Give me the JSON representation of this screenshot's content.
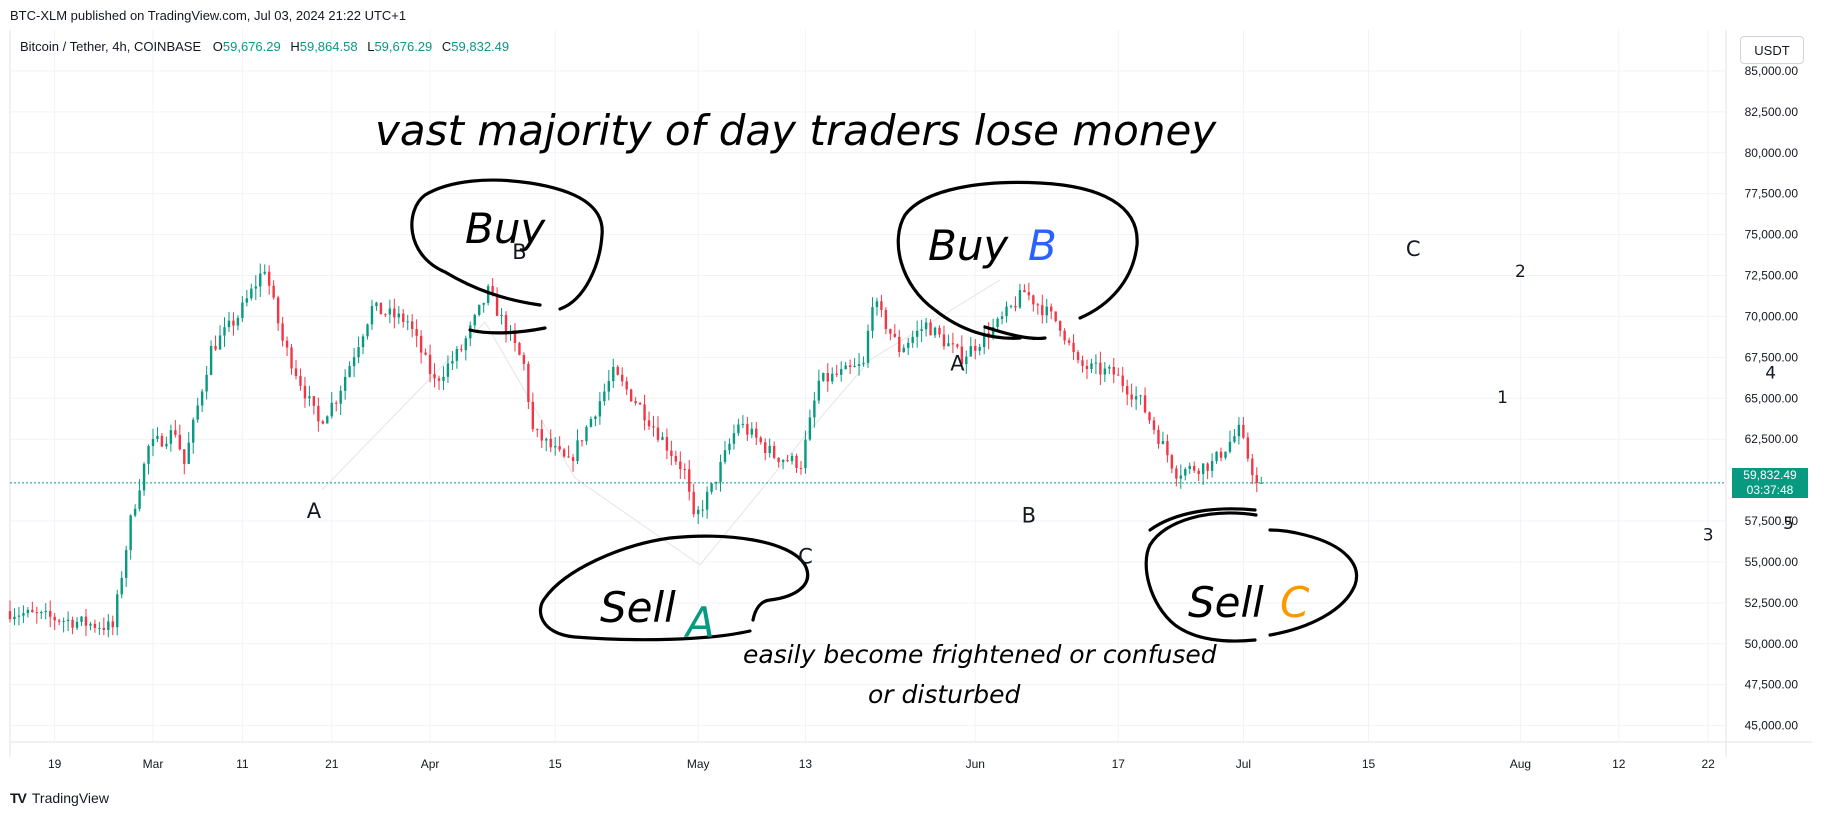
{
  "header": {
    "published": "BTC-XLM published on TradingView.com, Jul 03, 2024 21:22 UTC+1"
  },
  "legend": {
    "symbol": "Bitcoin / Tether, 4h, COINBASE",
    "o_label": "O",
    "o_value": "59,676.29",
    "h_label": "H",
    "h_value": "59,864.58",
    "l_label": "L",
    "l_value": "59,676.29",
    "c_label": "C",
    "c_value": "59,832.49"
  },
  "currency_button": "USDT",
  "price_tag": {
    "price": "59,832.49",
    "countdown": "03:37:48"
  },
  "footer": {
    "brand": "TradingView",
    "brand_mark": "TV"
  },
  "colors": {
    "up": "#089981",
    "down": "#f23645",
    "grid": "#f0f3fa",
    "annotation_a": "#089981",
    "annotation_b": "#2962ff",
    "annotation_c": "#ff9800"
  },
  "annotations": {
    "headline": "vast majority of day traders lose money",
    "subnote_line1": "easily become frightened or confused",
    "subnote_line2": "or disturbed",
    "buy1": "Buy",
    "buy2": "Buy",
    "buy2_tag": "B",
    "sell1": "Sell",
    "sell1_tag": "A",
    "sell2": "Sell",
    "sell2_tag": "C",
    "wave_labels": [
      {
        "id": "a1",
        "text": "A",
        "day": 34,
        "price": 57700
      },
      {
        "id": "b1",
        "text": "B",
        "day": 57,
        "price": 73500
      },
      {
        "id": "a2",
        "text": "A",
        "day": 106,
        "price": 66700
      },
      {
        "id": "b2",
        "text": "B",
        "day": 114,
        "price": 57400
      },
      {
        "id": "c1",
        "text": "C",
        "day": 89,
        "price": 54900
      },
      {
        "id": "c2",
        "text": "C",
        "day": 157,
        "price": 73700
      },
      {
        "id": "n1",
        "text": "1",
        "day": 167,
        "price": 64700
      },
      {
        "id": "n2",
        "text": "2",
        "day": 169,
        "price": 72400
      },
      {
        "id": "n3",
        "text": "3",
        "day": 190,
        "price": 56300
      },
      {
        "id": "n4",
        "text": "4",
        "day": 197,
        "price": 66200
      },
      {
        "id": "n5",
        "text": "5",
        "day": 199,
        "price": 57000
      }
    ]
  },
  "chart_data": {
    "type": "candlestick",
    "title": "Bitcoin / Tether, 4h, COINBASE",
    "x_axis": {
      "type": "date",
      "range": [
        "2024-02-14",
        "2024-08-24"
      ],
      "tick_labels": [
        {
          "label": "19",
          "date": "2024-02-19"
        },
        {
          "label": "Mar",
          "date": "2024-03-01"
        },
        {
          "label": "11",
          "date": "2024-03-11"
        },
        {
          "label": "21",
          "date": "2024-03-21"
        },
        {
          "label": "Apr",
          "date": "2024-04-01"
        },
        {
          "label": "15",
          "date": "2024-04-15"
        },
        {
          "label": "May",
          "date": "2024-05-01"
        },
        {
          "label": "13",
          "date": "2024-05-13"
        },
        {
          "label": "Jun",
          "date": "2024-06-01"
        },
        {
          "label": "17",
          "date": "2024-06-17"
        },
        {
          "label": "Jul",
          "date": "2024-07-01"
        },
        {
          "label": "15",
          "date": "2024-07-15"
        },
        {
          "label": "Aug",
          "date": "2024-08-01"
        },
        {
          "label": "12",
          "date": "2024-08-12"
        },
        {
          "label": "22",
          "date": "2024-08-22"
        }
      ]
    },
    "y_axis": {
      "range": [
        44000,
        87500
      ],
      "ticks": [
        {
          "label": "85,000.00",
          "value": 85000
        },
        {
          "label": "82,500.00",
          "value": 82500
        },
        {
          "label": "80,000.00",
          "value": 80000
        },
        {
          "label": "77,500.00",
          "value": 77500
        },
        {
          "label": "75,000.00",
          "value": 75000
        },
        {
          "label": "72,500.00",
          "value": 72500
        },
        {
          "label": "70,000.00",
          "value": 70000
        },
        {
          "label": "67,500.00",
          "value": 67500
        },
        {
          "label": "65,000.00",
          "value": 65000
        },
        {
          "label": "62,500.00",
          "value": 62500
        },
        {
          "label": "57,500.00",
          "value": 57500
        },
        {
          "label": "55,000.00",
          "value": 55000
        },
        {
          "label": "52,500.00",
          "value": 52500
        },
        {
          "label": "50,000.00",
          "value": 50000
        },
        {
          "label": "47,500.00",
          "value": 47500
        },
        {
          "label": "45,000.00",
          "value": 45000
        }
      ]
    },
    "last_price": 59832.49,
    "grid": true,
    "price_path_keypoints": [
      {
        "date": "2024-02-14",
        "price": 52000
      },
      {
        "date": "2024-02-20",
        "price": 51500
      },
      {
        "date": "2024-02-26",
        "price": 51000
      },
      {
        "date": "2024-02-28",
        "price": 57500
      },
      {
        "date": "2024-03-01",
        "price": 62000
      },
      {
        "date": "2024-03-04",
        "price": 63000
      },
      {
        "date": "2024-03-05",
        "price": 61000
      },
      {
        "date": "2024-03-08",
        "price": 68000
      },
      {
        "date": "2024-03-11",
        "price": 70000
      },
      {
        "date": "2024-03-14",
        "price": 73000
      },
      {
        "date": "2024-03-16",
        "price": 68500
      },
      {
        "date": "2024-03-20",
        "price": 63500
      },
      {
        "date": "2024-03-22",
        "price": 65000
      },
      {
        "date": "2024-03-26",
        "price": 70500
      },
      {
        "date": "2024-03-30",
        "price": 69700
      },
      {
        "date": "2024-04-02",
        "price": 66000
      },
      {
        "date": "2024-04-05",
        "price": 68000
      },
      {
        "date": "2024-04-08",
        "price": 71500
      },
      {
        "date": "2024-04-12",
        "price": 67000
      },
      {
        "date": "2024-04-13",
        "price": 63000
      },
      {
        "date": "2024-04-17",
        "price": 61000
      },
      {
        "date": "2024-04-22",
        "price": 66500
      },
      {
        "date": "2024-04-25",
        "price": 64500
      },
      {
        "date": "2024-04-30",
        "price": 60500
      },
      {
        "date": "2024-05-01",
        "price": 57500
      },
      {
        "date": "2024-05-03",
        "price": 59500
      },
      {
        "date": "2024-05-06",
        "price": 63500
      },
      {
        "date": "2024-05-10",
        "price": 61500
      },
      {
        "date": "2024-05-13",
        "price": 61000
      },
      {
        "date": "2024-05-15",
        "price": 66000
      },
      {
        "date": "2024-05-20",
        "price": 67000
      },
      {
        "date": "2024-05-21",
        "price": 71000
      },
      {
        "date": "2024-05-24",
        "price": 68000
      },
      {
        "date": "2024-05-27",
        "price": 69500
      },
      {
        "date": "2024-05-31",
        "price": 67500
      },
      {
        "date": "2024-06-04",
        "price": 69500
      },
      {
        "date": "2024-06-07",
        "price": 71500
      },
      {
        "date": "2024-06-11",
        "price": 69500
      },
      {
        "date": "2024-06-13",
        "price": 67000
      },
      {
        "date": "2024-06-17",
        "price": 66500
      },
      {
        "date": "2024-06-20",
        "price": 64800
      },
      {
        "date": "2024-06-24",
        "price": 60500
      },
      {
        "date": "2024-06-28",
        "price": 61000
      },
      {
        "date": "2024-07-01",
        "price": 63000
      },
      {
        "date": "2024-07-03",
        "price": 59832
      }
    ]
  }
}
